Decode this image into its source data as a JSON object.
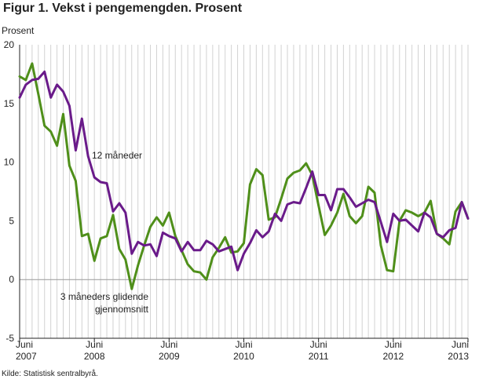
{
  "title": "Figur 1. Vekst i pengemengden. Prosent",
  "source": "Kilde: Statistisk sentralbyrå.",
  "chart_data": {
    "type": "line",
    "ylabel": "Prosent",
    "ylim": [
      -5,
      20
    ],
    "yticks": [
      -5,
      0,
      5,
      10,
      15,
      20
    ],
    "xlim": [
      "2007-06",
      "2013-06"
    ],
    "xticks": [
      {
        "month": "Juni",
        "year": "2007"
      },
      {
        "month": "Juni",
        "year": "2008"
      },
      {
        "month": "Juni",
        "year": "2009"
      },
      {
        "month": "Juni",
        "year": "2010"
      },
      {
        "month": "Juni",
        "year": "2011"
      },
      {
        "month": "Juni",
        "year": "2012"
      },
      {
        "month": "Juni",
        "year": "2013"
      }
    ],
    "grid": "vertical monthly gridlines",
    "colors": {
      "twelve_month": "#6a1b8a",
      "three_month": "#4f8f1a"
    },
    "annotations": [
      {
        "text": "12 måneder",
        "series": "12 måneder"
      },
      {
        "text": "3 måneders glidende gjennomsnitt",
        "series": "3 måneders glidende gjennomsnitt"
      }
    ],
    "x": [
      "2007-06",
      "2007-07",
      "2007-08",
      "2007-09",
      "2007-10",
      "2007-11",
      "2007-12",
      "2008-01",
      "2008-02",
      "2008-03",
      "2008-04",
      "2008-05",
      "2008-06",
      "2008-07",
      "2008-08",
      "2008-09",
      "2008-10",
      "2008-11",
      "2008-12",
      "2009-01",
      "2009-02",
      "2009-03",
      "2009-04",
      "2009-05",
      "2009-06",
      "2009-07",
      "2009-08",
      "2009-09",
      "2009-10",
      "2009-11",
      "2009-12",
      "2010-01",
      "2010-02",
      "2010-03",
      "2010-04",
      "2010-05",
      "2010-06",
      "2010-07",
      "2010-08",
      "2010-09",
      "2010-10",
      "2010-11",
      "2010-12",
      "2011-01",
      "2011-02",
      "2011-03",
      "2011-04",
      "2011-05",
      "2011-06",
      "2011-07",
      "2011-08",
      "2011-09",
      "2011-10",
      "2011-11",
      "2011-12",
      "2012-01",
      "2012-02",
      "2012-03",
      "2012-04",
      "2012-05",
      "2012-06",
      "2012-07",
      "2012-08",
      "2012-09",
      "2012-10",
      "2012-11",
      "2012-12",
      "2013-01",
      "2013-02",
      "2013-03",
      "2013-04",
      "2013-05",
      "2013-06"
    ],
    "series": [
      {
        "name": "12 måneder",
        "values": [
          15.5,
          16.6,
          17.0,
          17.1,
          17.7,
          15.5,
          16.6,
          16.0,
          14.8,
          11.0,
          13.7,
          10.5,
          8.7,
          8.3,
          8.2,
          5.8,
          6.5,
          5.7,
          2.2,
          3.2,
          2.9,
          3.0,
          2.0,
          4.0,
          3.7,
          3.5,
          2.4,
          3.2,
          2.5,
          2.5,
          3.3,
          3.0,
          2.4,
          2.6,
          2.8,
          0.8,
          2.2,
          3.1,
          4.2,
          3.6,
          4.1,
          5.6,
          5.0,
          6.4,
          6.6,
          6.5,
          7.8,
          9.2,
          7.2,
          7.2,
          5.9,
          7.7,
          7.7,
          7.0,
          6.2,
          6.5,
          6.8,
          6.6,
          4.9,
          3.2,
          5.6,
          5.0,
          5.1,
          4.6,
          4.1,
          5.7,
          5.3,
          3.9,
          3.6,
          4.2,
          4.4,
          6.6,
          5.2
        ]
      },
      {
        "name": "3 måneders glidende gjennomsnitt",
        "values": [
          17.3,
          17.0,
          18.4,
          15.8,
          13.1,
          12.6,
          11.4,
          14.1,
          9.7,
          8.4,
          3.7,
          3.9,
          1.6,
          3.5,
          3.7,
          5.5,
          2.6,
          1.7,
          -0.8,
          1.2,
          2.9,
          4.5,
          5.3,
          4.6,
          5.7,
          3.7,
          2.5,
          1.3,
          0.7,
          0.6,
          0.0,
          1.9,
          2.7,
          3.6,
          2.3,
          2.4,
          3.1,
          8.1,
          9.4,
          8.9,
          5.1,
          5.3,
          6.9,
          8.6,
          9.1,
          9.3,
          9.9,
          8.9,
          6.3,
          3.8,
          4.6,
          5.7,
          7.3,
          5.4,
          4.8,
          5.4,
          7.9,
          7.4,
          2.9,
          0.8,
          0.7,
          5.0,
          5.9,
          5.7,
          5.4,
          5.7,
          6.7,
          3.9,
          3.5,
          3.0,
          5.8,
          6.6,
          5.2
        ]
      }
    ]
  }
}
